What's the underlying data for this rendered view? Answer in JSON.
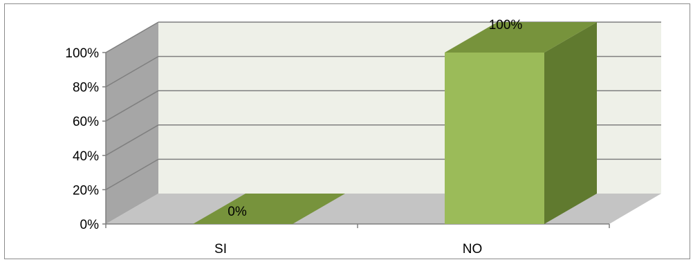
{
  "chart_data": {
    "type": "bar",
    "three_d": true,
    "categories": [
      "SI",
      "NO"
    ],
    "values": [
      0,
      100
    ],
    "data_labels": [
      "0%",
      "100%"
    ],
    "y_ticks": [
      "0%",
      "20%",
      "40%",
      "60%",
      "80%",
      "100%"
    ],
    "ylim": [
      0,
      100
    ],
    "grid": true,
    "legend": "none",
    "colors": {
      "bar_front": "#9bbb59",
      "bar_top": "#77933c",
      "bar_side": "#607a2f",
      "back_wall": "#eef0e8",
      "side_wall": "#a6a6a6",
      "floor": "#c4c4c4",
      "gridline": "#7f7f7f"
    }
  }
}
